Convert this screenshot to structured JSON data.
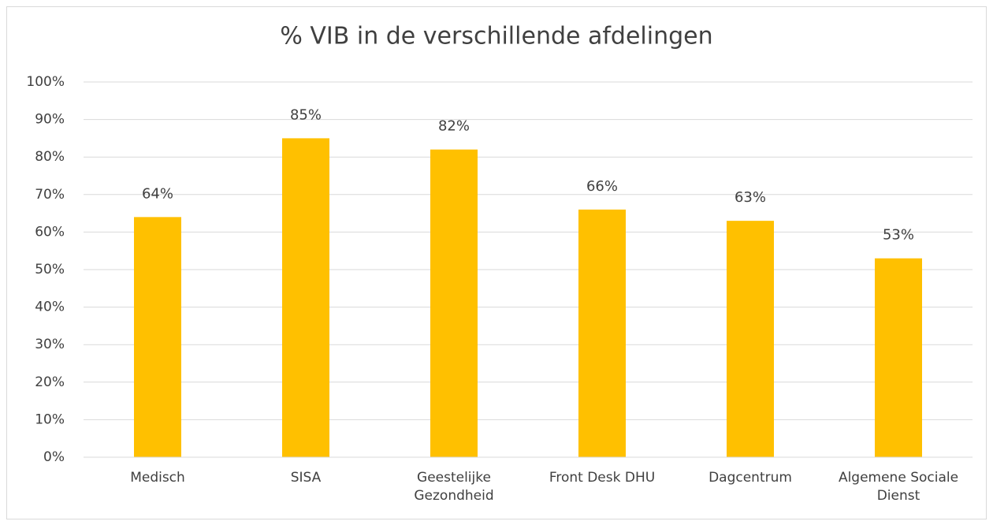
{
  "chart_data": {
    "type": "bar",
    "title": "% VIB in de verschillende afdelingen",
    "categories": [
      "Medisch",
      "SISA",
      "Geestelijke Gezondheid",
      "Front Desk DHU",
      "Dagcentrum",
      "Algemene Sociale Dienst"
    ],
    "values": [
      64,
      85,
      82,
      66,
      63,
      53
    ],
    "value_labels": [
      "64%",
      "85%",
      "82%",
      "66%",
      "63%",
      "53%"
    ],
    "color": "#ffc000",
    "ylim": [
      0,
      100
    ],
    "yticks": [
      {
        "value": 0,
        "label": "0%"
      },
      {
        "value": 10,
        "label": "10%"
      },
      {
        "value": 20,
        "label": "20%"
      },
      {
        "value": 30,
        "label": "30%"
      },
      {
        "value": 40,
        "label": "40%"
      },
      {
        "value": 50,
        "label": "50%"
      },
      {
        "value": 60,
        "label": "60%"
      },
      {
        "value": 70,
        "label": "70%"
      },
      {
        "value": 80,
        "label": "80%"
      },
      {
        "value": 90,
        "label": "90%"
      },
      {
        "value": 100,
        "label": "100%"
      }
    ],
    "grid": true
  }
}
